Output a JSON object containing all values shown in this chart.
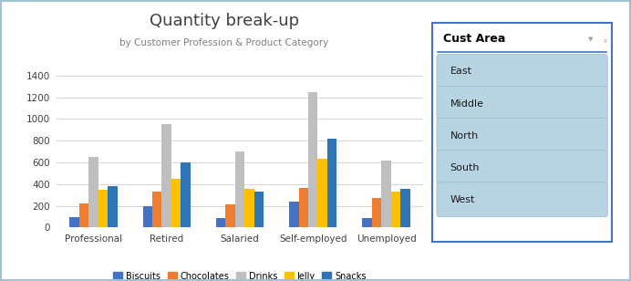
{
  "title": "Quantity break-up",
  "subtitle": "by Customer Profession & Product Category",
  "categories": [
    "Professional",
    "Retired",
    "Salaried",
    "Self-employed",
    "Unemployed"
  ],
  "series": {
    "Biscuits": [
      100,
      200,
      90,
      235,
      90
    ],
    "Chocolates": [
      225,
      335,
      210,
      365,
      270
    ],
    "Drinks": [
      650,
      950,
      700,
      1245,
      615
    ],
    "Jelly": [
      350,
      445,
      355,
      635,
      330
    ],
    "Snacks": [
      385,
      600,
      330,
      820,
      355
    ]
  },
  "bar_colors": [
    "#4472c4",
    "#ed7d31",
    "#bfbfbf",
    "#ffc000",
    "#2e75b6"
  ],
  "ylim": [
    0,
    1500
  ],
  "yticks": [
    0,
    200,
    400,
    600,
    800,
    1000,
    1200,
    1400
  ],
  "background": "#f2f2f2",
  "plot_bg": "#ffffff",
  "grid_color": "#d9d9d9",
  "title_color": "#404040",
  "subtitle_color": "#808080",
  "slicer_title": "Cust Area",
  "slicer_items": [
    "East",
    "Middle",
    "North",
    "South",
    "West"
  ],
  "slicer_item_bg": "#b8d4e3",
  "slicer_border": "#4472c4",
  "slicer_outer_border": "#4472c4",
  "legend_labels": [
    "Biscuits",
    "Chocolates",
    "Drinks",
    "Jelly",
    "Snacks"
  ],
  "outer_border_color": "#9dc3d4",
  "fig_bg": "#ffffff"
}
